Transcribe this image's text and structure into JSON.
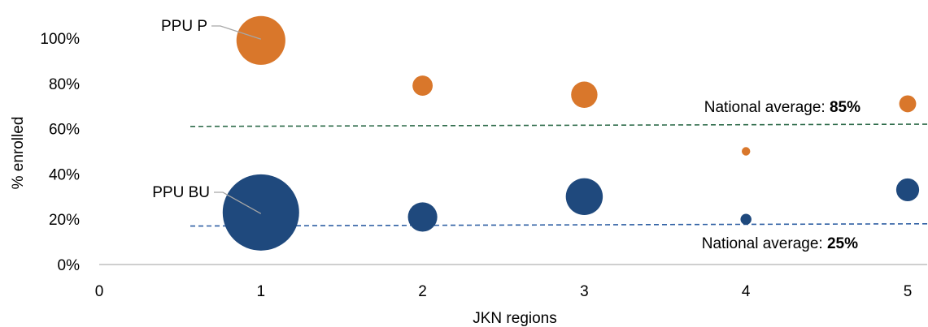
{
  "chart_data": {
    "type": "bubble",
    "xlabel": "JKN regions",
    "ylabel": "% enrolled",
    "xlim": [
      0,
      5
    ],
    "ylim": [
      0,
      100
    ],
    "x_ticks": [
      "0",
      "1",
      "2",
      "3",
      "4",
      "5"
    ],
    "y_ticks": [
      "0%",
      "20%",
      "40%",
      "60%",
      "80%",
      "100%"
    ],
    "grid": false,
    "series": [
      {
        "name": "PPU P",
        "color": "#D9772B",
        "points": [
          {
            "x": 1,
            "y": 99,
            "size": 100
          },
          {
            "x": 2,
            "y": 79,
            "size": 17
          },
          {
            "x": 3,
            "y": 75,
            "size": 29
          },
          {
            "x": 4,
            "y": 50,
            "size": 3
          },
          {
            "x": 5,
            "y": 71,
            "size": 12
          }
        ]
      },
      {
        "name": "PPU BU",
        "color": "#1F497D",
        "points": [
          {
            "x": 1,
            "y": 23,
            "size": 244
          },
          {
            "x": 2,
            "y": 21,
            "size": 36
          },
          {
            "x": 3,
            "y": 30,
            "size": 57
          },
          {
            "x": 4,
            "y": 20,
            "size": 5
          },
          {
            "x": 5,
            "y": 33,
            "size": 22
          }
        ]
      }
    ],
    "reference_lines": [
      {
        "label": "National average: ",
        "value_text": "85%",
        "color": "#2E6B4A",
        "y_start": 61,
        "y_end": 62
      },
      {
        "label": "National average: ",
        "value_text": "25%",
        "color": "#2E5FA3",
        "y_start": 17,
        "y_end": 18
      }
    ]
  }
}
